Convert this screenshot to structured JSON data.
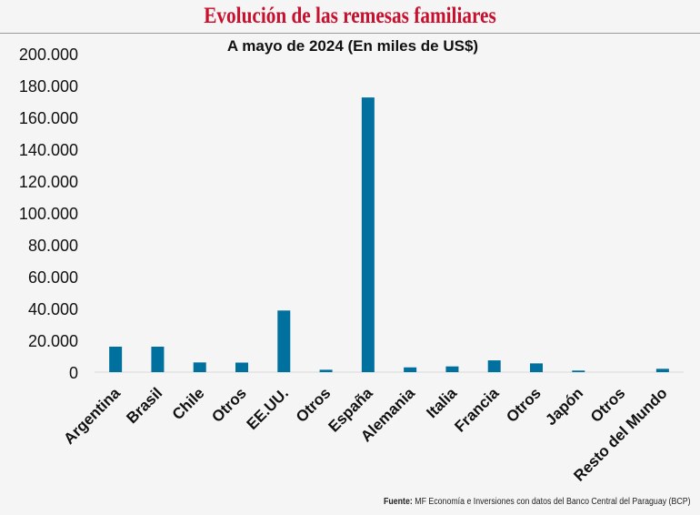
{
  "header": {
    "title": "Evolución de las remesas familiares"
  },
  "chart_data": {
    "type": "bar",
    "title": "A mayo de 2024 (En miles de US$)",
    "xlabel": "",
    "ylabel": "",
    "categories": [
      "Argentina",
      "Brasil",
      "Chile",
      "Otros",
      "EE.UU.",
      "Otros",
      "España",
      "Alemania",
      "Italia",
      "Francia",
      "Otros",
      "Japón",
      "Otros",
      "Resto del Mundo"
    ],
    "values": [
      16000,
      16000,
      6100,
      6000,
      38700,
      1500,
      172500,
      3000,
      3600,
      7400,
      5500,
      1000,
      0,
      2100
    ],
    "ylim": [
      0,
      200000
    ],
    "yticks": [
      0,
      20000,
      40000,
      60000,
      80000,
      100000,
      120000,
      140000,
      160000,
      180000,
      200000
    ],
    "ytick_labels": [
      "0",
      "20.000",
      "40.000",
      "60.000",
      "80.000",
      "100.000",
      "120.000",
      "140.000",
      "160.000",
      "180.000",
      "200.000"
    ],
    "grid": false,
    "bar_color": "#00709f"
  },
  "footer": {
    "source_label": "Fuente:",
    "source_text": " MF Economía e Inversiones con datos del Banco Central del Paraguay (BCP)"
  }
}
